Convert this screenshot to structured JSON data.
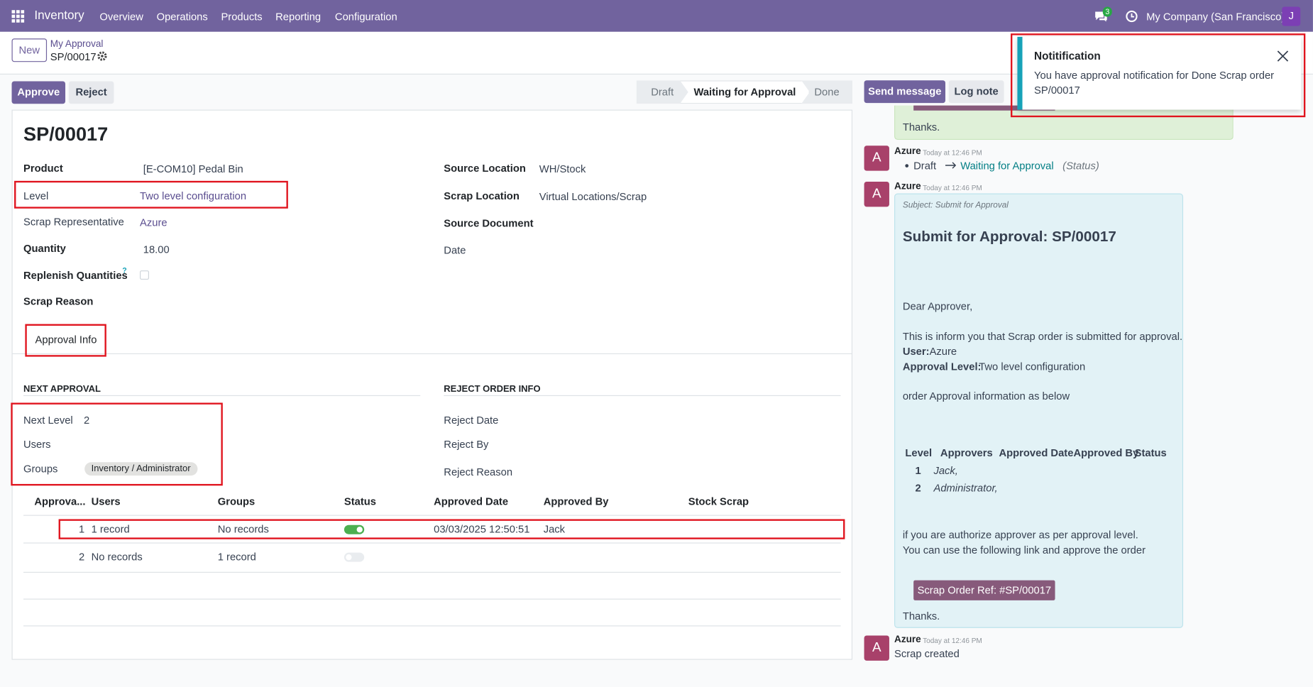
{
  "navbar": {
    "app": "Inventory",
    "menu": [
      "Overview",
      "Operations",
      "Products",
      "Reporting",
      "Configuration"
    ],
    "message_count": "3",
    "company": "My Company (San Francisco)",
    "user_initial": "J"
  },
  "control_panel": {
    "new_button": "New",
    "breadcrumb": "My Approval",
    "record": "SP/00017"
  },
  "actions": [
    "Approve",
    "Reject"
  ],
  "statusbar": {
    "stages": [
      "Draft",
      "Waiting for Approval",
      "Done"
    ]
  },
  "chatter_buttons": [
    "Send message",
    "Log note"
  ],
  "form": {
    "title": "SP/00017",
    "left_fields": [
      {
        "label": "Product",
        "value": "[E-COM10] Pedal Bin"
      },
      {
        "label": "Level",
        "value": "Two level configuration"
      },
      {
        "label": "Scrap Representative",
        "value": "Azure"
      },
      {
        "label": "Quantity",
        "value": "18.00"
      },
      {
        "label": "Replenish Quantities",
        "help": "?"
      },
      {
        "label": "Scrap Reason"
      }
    ],
    "right_fields": [
      {
        "label": "Source Location",
        "value": "WH/Stock"
      },
      {
        "label": "Scrap Location",
        "value": "Virtual Locations/Scrap"
      },
      {
        "label": "Source Document"
      },
      {
        "label": "Date"
      }
    ],
    "tab": "Approval Info",
    "next_approval": {
      "heading": "NEXT APPROVAL",
      "fields": [
        {
          "label": "Next Level",
          "value": "2"
        },
        {
          "label": "Users"
        },
        {
          "label": "Groups",
          "tag": "Inventory / Administrator"
        }
      ]
    },
    "reject_info": {
      "heading": "REJECT ORDER INFO",
      "fields": [
        "Reject Date",
        "Reject By",
        "Reject Reason"
      ]
    },
    "table": {
      "headers": [
        "Approva...",
        "Users",
        "Groups",
        "Status",
        "Approved Date",
        "Approved By",
        "Stock Scrap"
      ],
      "rows": [
        {
          "sequence": "1",
          "users": "1 record",
          "groups": "No records",
          "status": true,
          "approved_date": "03/03/2025 12:50:51",
          "approved_by": "Jack"
        },
        {
          "sequence": "2",
          "users": "No records",
          "groups": "1 record",
          "status": false
        }
      ]
    }
  },
  "chatter": {
    "messages": [
      {
        "body": "Thanks."
      },
      {
        "avatar": "A",
        "author": "Azure",
        "time": "Today at 12:46 PM",
        "tracking": {
          "old": "Draft",
          "new": "Waiting for Approval",
          "field": "(Status)"
        }
      },
      {
        "avatar": "A",
        "author": "Azure",
        "time": "Today at 12:46 PM",
        "subject": "Subject: Submit for Approval",
        "heading": "Submit for Approval: SP/00017",
        "greeting": "Dear Approver,",
        "intro": "This is inform you that Scrap order is submitted for approval.",
        "user_label": "User:",
        "user": "Azure",
        "level_label": "Approval Level:",
        "level": "Two level configuration",
        "table_intro": "order Approval information as below",
        "approval_table": {
          "headers": [
            "Level",
            "Approvers",
            "Approved Date",
            "Approved By",
            "Status"
          ],
          "rows": [
            [
              "1",
              "Jack,"
            ],
            [
              "2",
              "Administrator,"
            ]
          ]
        },
        "instructions": [
          "if you are authorize approver as per approval level.",
          "You can use the following link and approve the order"
        ],
        "button": "Scrap Order Ref: #SP/00017",
        "closing": "Thanks."
      },
      {
        "avatar": "A",
        "author": "Azure",
        "time": "Today at 12:46 PM",
        "body": "Scrap created"
      }
    ]
  },
  "notification": {
    "title": "Notitification",
    "body": "You have approval notification for Done Scrap order SP/00017"
  }
}
